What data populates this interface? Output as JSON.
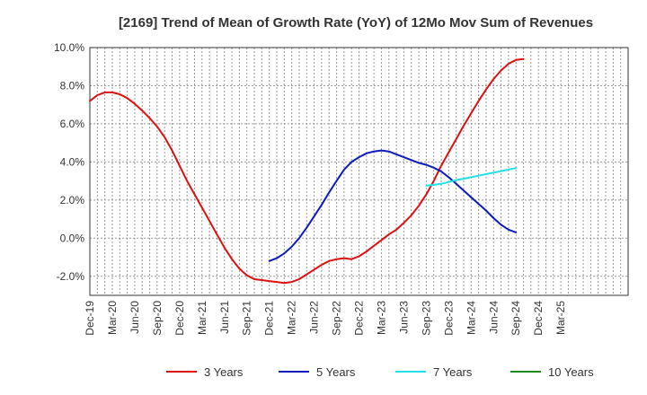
{
  "chart_data": {
    "type": "line",
    "title": "[2169]  Trend of Mean of Growth Rate (YoY) of 12Mo Mov Sum of Revenues",
    "xlabel": "",
    "ylabel": "",
    "ylim": [
      -3,
      10
    ],
    "yticks": [
      10,
      8,
      6,
      4,
      2,
      0,
      -2
    ],
    "ytick_labels": [
      "10.0%",
      "8.0%",
      "6.0%",
      "4.0%",
      "2.0%",
      "0.0%",
      "-2.0%"
    ],
    "x_range_months": [
      0,
      72
    ],
    "x_tick_labels": [
      "Dec-19",
      "Mar-20",
      "Jun-20",
      "Sep-20",
      "Dec-20",
      "Mar-21",
      "Jun-21",
      "Sep-21",
      "Dec-21",
      "Mar-22",
      "Jun-22",
      "Sep-22",
      "Dec-22",
      "Mar-23",
      "Jun-23",
      "Sep-23",
      "Dec-23",
      "Mar-24",
      "Jun-24",
      "Sep-24",
      "Dec-24",
      "Mar-25"
    ],
    "grid": true,
    "legend_position": "bottom",
    "series": [
      {
        "name": "3 Years",
        "color": "#dd1111",
        "points": [
          [
            0,
            7.2
          ],
          [
            1,
            7.5
          ],
          [
            2,
            7.65
          ],
          [
            3,
            7.65
          ],
          [
            4,
            7.55
          ],
          [
            5,
            7.35
          ],
          [
            6,
            7.05
          ],
          [
            7,
            6.7
          ],
          [
            8,
            6.3
          ],
          [
            9,
            5.85
          ],
          [
            10,
            5.3
          ],
          [
            11,
            4.6
          ],
          [
            12,
            3.8
          ],
          [
            13,
            3.0
          ],
          [
            14,
            2.3
          ],
          [
            15,
            1.6
          ],
          [
            16,
            0.9
          ],
          [
            17,
            0.2
          ],
          [
            18,
            -0.5
          ],
          [
            19,
            -1.1
          ],
          [
            20,
            -1.6
          ],
          [
            21,
            -1.95
          ],
          [
            22,
            -2.15
          ],
          [
            23,
            -2.2
          ],
          [
            24,
            -2.25
          ],
          [
            25,
            -2.3
          ],
          [
            26,
            -2.35
          ],
          [
            27,
            -2.3
          ],
          [
            28,
            -2.15
          ],
          [
            29,
            -1.9
          ],
          [
            30,
            -1.65
          ],
          [
            31,
            -1.4
          ],
          [
            32,
            -1.2
          ],
          [
            33,
            -1.1
          ],
          [
            34,
            -1.05
          ],
          [
            35,
            -1.1
          ],
          [
            36,
            -0.95
          ],
          [
            37,
            -0.7
          ],
          [
            38,
            -0.4
          ],
          [
            39,
            -0.1
          ],
          [
            40,
            0.2
          ],
          [
            41,
            0.45
          ],
          [
            42,
            0.8
          ],
          [
            43,
            1.2
          ],
          [
            44,
            1.7
          ],
          [
            45,
            2.3
          ],
          [
            46,
            3.0
          ],
          [
            47,
            3.8
          ],
          [
            48,
            4.5
          ],
          [
            49,
            5.2
          ],
          [
            50,
            5.9
          ],
          [
            51,
            6.55
          ],
          [
            52,
            7.2
          ],
          [
            53,
            7.8
          ],
          [
            54,
            8.35
          ],
          [
            55,
            8.8
          ],
          [
            56,
            9.15
          ],
          [
            57,
            9.35
          ],
          [
            58,
            9.4
          ]
        ]
      },
      {
        "name": "5 Years",
        "color": "#0d1bbf",
        "points": [
          [
            24,
            -1.2
          ],
          [
            25,
            -1.05
          ],
          [
            26,
            -0.8
          ],
          [
            27,
            -0.45
          ],
          [
            28,
            0.0
          ],
          [
            29,
            0.55
          ],
          [
            30,
            1.15
          ],
          [
            31,
            1.75
          ],
          [
            32,
            2.4
          ],
          [
            33,
            3.0
          ],
          [
            34,
            3.6
          ],
          [
            35,
            4.0
          ],
          [
            36,
            4.25
          ],
          [
            37,
            4.45
          ],
          [
            38,
            4.55
          ],
          [
            39,
            4.6
          ],
          [
            40,
            4.55
          ],
          [
            41,
            4.4
          ],
          [
            42,
            4.25
          ],
          [
            43,
            4.1
          ],
          [
            44,
            3.95
          ],
          [
            45,
            3.85
          ],
          [
            46,
            3.7
          ],
          [
            47,
            3.5
          ],
          [
            48,
            3.2
          ],
          [
            49,
            2.85
          ],
          [
            50,
            2.5
          ],
          [
            51,
            2.15
          ],
          [
            52,
            1.8
          ],
          [
            53,
            1.45
          ],
          [
            54,
            1.05
          ],
          [
            55,
            0.7
          ],
          [
            56,
            0.45
          ],
          [
            57,
            0.3
          ]
        ]
      },
      {
        "name": "7 Years",
        "color": "#22e0e6",
        "points": [
          [
            45,
            2.75
          ],
          [
            46,
            2.8
          ],
          [
            47,
            2.85
          ],
          [
            48,
            2.95
          ],
          [
            49,
            3.05
          ],
          [
            50,
            3.12
          ],
          [
            51,
            3.2
          ],
          [
            52,
            3.28
          ],
          [
            53,
            3.36
          ],
          [
            54,
            3.44
          ],
          [
            55,
            3.52
          ],
          [
            56,
            3.6
          ],
          [
            57,
            3.68
          ]
        ]
      },
      {
        "name": "10 Years",
        "color": "#1f8a1f",
        "points": []
      }
    ]
  }
}
